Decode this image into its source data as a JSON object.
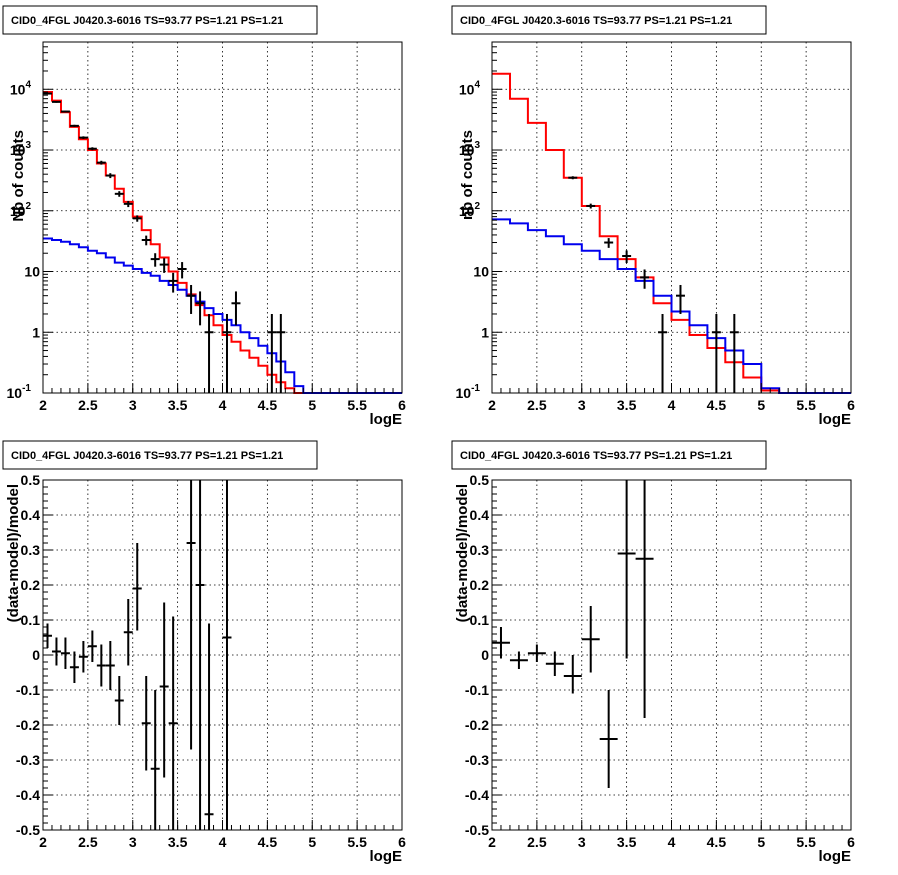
{
  "colors": {
    "data": "#000000",
    "total_model": "#ff0000",
    "background_model": "#0000ee"
  },
  "chart_data": [
    {
      "id": "counts-left",
      "type": "line",
      "title": "CID0_4FGL J0420.3-6016 TS=93.77 PS=1.21 PS=1.21",
      "xlabel": "logE",
      "ylabel": "Nb of counts",
      "xlim": [
        2,
        6
      ],
      "ylim": [
        0.1,
        60000
      ],
      "yscale": "log",
      "grid": true,
      "x_ticks": [
        "2",
        "2.5",
        "3",
        "3.5",
        "4",
        "4.5",
        "5",
        "5.5",
        "6"
      ],
      "y_ticks": [
        {
          "base": "10",
          "exp": "-1",
          "value": 0.1
        },
        {
          "base": "1",
          "exp": "",
          "value": 1
        },
        {
          "base": "10",
          "exp": "",
          "value": 10
        },
        {
          "base": "10",
          "exp": "2",
          "value": 100
        },
        {
          "base": "10",
          "exp": "3",
          "value": 1000
        },
        {
          "base": "10",
          "exp": "4",
          "value": 10000
        }
      ],
      "bin_edges": [
        2.0,
        2.1,
        2.2,
        2.3,
        2.4,
        2.5,
        2.6,
        2.7,
        2.8,
        2.9,
        3.0,
        3.1,
        3.2,
        3.3,
        3.4,
        3.5,
        3.6,
        3.7,
        3.8,
        3.9,
        4.0,
        4.1,
        4.2,
        4.3,
        4.4,
        4.5,
        4.6,
        4.7,
        4.8,
        4.9,
        5.0,
        5.1,
        5.2,
        5.3,
        5.4,
        5.5,
        5.6,
        5.7,
        5.8,
        5.9,
        6.0
      ],
      "series": [
        {
          "kind": "step",
          "color": "#ff0000",
          "values": [
            9000,
            6500,
            4200,
            2400,
            1500,
            1000,
            600,
            380,
            230,
            140,
            80,
            48,
            28,
            17,
            10,
            6.5,
            4.2,
            2.8,
            1.9,
            1.3,
            0.9,
            0.7,
            0.5,
            0.38,
            0.28,
            0.2,
            0.15,
            0.12,
            0.1,
            0.1,
            0.1,
            0.1,
            0.1,
            0.1,
            0.1,
            0.1,
            0.1,
            0.1,
            0.1,
            0.1
          ]
        },
        {
          "kind": "step",
          "color": "#0000ee",
          "values": [
            35,
            33,
            31,
            28,
            25,
            22,
            20,
            17,
            14,
            12.5,
            11,
            9.5,
            8.5,
            7,
            6,
            5,
            4,
            3.2,
            2.5,
            2,
            1.6,
            1.3,
            1,
            0.8,
            0.6,
            0.45,
            0.33,
            0.22,
            0.13,
            0.1,
            0.1,
            0.1,
            0.1,
            0.1,
            0.1,
            0.1,
            0.1,
            0.1,
            0.1,
            0.1
          ]
        },
        {
          "kind": "points",
          "color": "#000000",
          "points": [
            {
              "x": 2.05,
              "y": 8500,
              "lo": 8300,
              "hi": 8700
            },
            {
              "x": 2.15,
              "y": 6200,
              "lo": 6000,
              "hi": 6400
            },
            {
              "x": 2.25,
              "y": 4300,
              "lo": 4150,
              "hi": 4450
            },
            {
              "x": 2.35,
              "y": 2500,
              "lo": 2400,
              "hi": 2600
            },
            {
              "x": 2.45,
              "y": 1600,
              "lo": 1520,
              "hi": 1680
            },
            {
              "x": 2.55,
              "y": 1050,
              "lo": 990,
              "hi": 1110
            },
            {
              "x": 2.65,
              "y": 620,
              "lo": 575,
              "hi": 665
            },
            {
              "x": 2.75,
              "y": 380,
              "lo": 345,
              "hi": 415
            },
            {
              "x": 2.85,
              "y": 190,
              "lo": 170,
              "hi": 210
            },
            {
              "x": 2.95,
              "y": 130,
              "lo": 115,
              "hi": 145
            },
            {
              "x": 3.05,
              "y": 75,
              "lo": 66,
              "hi": 84
            },
            {
              "x": 3.15,
              "y": 33,
              "lo": 27,
              "hi": 39
            },
            {
              "x": 3.25,
              "y": 16,
              "lo": 12,
              "hi": 20
            },
            {
              "x": 3.35,
              "y": 13,
              "lo": 9.5,
              "hi": 16.5
            },
            {
              "x": 3.45,
              "y": 7,
              "lo": 4.5,
              "hi": 9.5
            },
            {
              "x": 3.55,
              "y": 11,
              "lo": 7.7,
              "hi": 14.3
            },
            {
              "x": 3.65,
              "y": 4,
              "lo": 2,
              "hi": 6
            },
            {
              "x": 3.75,
              "y": 3,
              "lo": 1.3,
              "hi": 4.7
            },
            {
              "x": 3.85,
              "y": 1,
              "lo": 0.05,
              "hi": 2
            },
            {
              "x": 4.05,
              "y": 1,
              "lo": 0.05,
              "hi": 2
            },
            {
              "x": 4.15,
              "y": 3,
              "lo": 1.3,
              "hi": 4.7
            },
            {
              "x": 4.55,
              "y": 1,
              "lo": 0.05,
              "hi": 2
            },
            {
              "x": 4.65,
              "y": 1,
              "lo": 0.05,
              "hi": 2
            }
          ]
        }
      ]
    },
    {
      "id": "counts-right",
      "type": "line",
      "title": "CID0_4FGL J0420.3-6016 TS=93.77 PS=1.21 PS=1.21",
      "xlabel": "logE",
      "ylabel": "nb of counts",
      "xlim": [
        2,
        6
      ],
      "ylim": [
        0.1,
        60000
      ],
      "yscale": "log",
      "grid": true,
      "x_ticks": [
        "2",
        "2.5",
        "3",
        "3.5",
        "4",
        "4.5",
        "5",
        "5.5",
        "6"
      ],
      "y_ticks": [
        {
          "base": "10",
          "exp": "-1",
          "value": 0.1
        },
        {
          "base": "1",
          "exp": "",
          "value": 1
        },
        {
          "base": "10",
          "exp": "",
          "value": 10
        },
        {
          "base": "10",
          "exp": "2",
          "value": 100
        },
        {
          "base": "10",
          "exp": "3",
          "value": 1000
        },
        {
          "base": "10",
          "exp": "4",
          "value": 10000
        }
      ],
      "bin_edges": [
        2.0,
        2.2,
        2.4,
        2.6,
        2.8,
        3.0,
        3.2,
        3.4,
        3.6,
        3.8,
        4.0,
        4.2,
        4.4,
        4.6,
        4.8,
        5.0,
        5.2,
        5.4,
        5.6,
        5.8,
        6.0
      ],
      "series": [
        {
          "kind": "step",
          "color": "#ff0000",
          "values": [
            18000,
            7000,
            2800,
            1000,
            350,
            120,
            38,
            16,
            8,
            3,
            1.6,
            0.9,
            0.55,
            0.32,
            0.18,
            0.11,
            0.1,
            0.1,
            0.1,
            0.1
          ]
        },
        {
          "kind": "step",
          "color": "#0000ee",
          "values": [
            72,
            62,
            48,
            38,
            28,
            22,
            16,
            11,
            7,
            4,
            2.2,
            1.3,
            0.8,
            0.5,
            0.3,
            0.12,
            0.1,
            0.1,
            0.1,
            0.1
          ]
        },
        {
          "kind": "points",
          "color": "#000000",
          "points": [
            {
              "x": 2.9,
              "y": 350,
              "lo": 330,
              "hi": 370
            },
            {
              "x": 3.1,
              "y": 120,
              "lo": 109,
              "hi": 131
            },
            {
              "x": 3.3,
              "y": 30,
              "lo": 24.5,
              "hi": 35.5
            },
            {
              "x": 3.5,
              "y": 18,
              "lo": 13.8,
              "hi": 22.2
            },
            {
              "x": 3.7,
              "y": 8,
              "lo": 5.2,
              "hi": 10.8
            },
            {
              "x": 3.9,
              "y": 1,
              "lo": 0.05,
              "hi": 2
            },
            {
              "x": 4.1,
              "y": 4,
              "lo": 2,
              "hi": 6
            },
            {
              "x": 4.5,
              "y": 1,
              "lo": 0.05,
              "hi": 2
            },
            {
              "x": 4.7,
              "y": 1,
              "lo": 0.05,
              "hi": 2
            }
          ]
        }
      ]
    },
    {
      "id": "residual-left",
      "type": "scatter",
      "title": "CID0_4FGL J0420.3-6016 TS=93.77 PS=1.21 PS=1.21",
      "xlabel": "logE",
      "ylabel": "(data-model)/model",
      "xlim": [
        2,
        6
      ],
      "ylim": [
        -0.5,
        0.5
      ],
      "yscale": "linear",
      "grid": true,
      "x_ticks": [
        "2",
        "2.5",
        "3",
        "3.5",
        "4",
        "4.5",
        "5",
        "5.5",
        "6"
      ],
      "y_ticks": [
        {
          "label": "-0.5",
          "value": -0.5
        },
        {
          "label": "-0.4",
          "value": -0.4
        },
        {
          "label": "-0.3",
          "value": -0.3
        },
        {
          "label": "-0.2",
          "value": -0.2
        },
        {
          "label": "-0.1",
          "value": -0.1
        },
        {
          "label": "0",
          "value": 0
        },
        {
          "label": "0.1",
          "value": 0.1
        },
        {
          "label": "0.2",
          "value": 0.2
        },
        {
          "label": "0.3",
          "value": 0.3
        },
        {
          "label": "0.4",
          "value": 0.4
        },
        {
          "label": "0.5",
          "value": 0.5
        }
      ],
      "xerr": 0.05,
      "series": [
        {
          "kind": "points",
          "color": "#000000",
          "points": [
            {
              "x": 2.05,
              "y": 0.055,
              "lo": 0.02,
              "hi": 0.09
            },
            {
              "x": 2.15,
              "y": 0.01,
              "lo": -0.03,
              "hi": 0.05
            },
            {
              "x": 2.25,
              "y": 0.005,
              "lo": -0.04,
              "hi": 0.05
            },
            {
              "x": 2.35,
              "y": -0.035,
              "lo": -0.08,
              "hi": 0.01
            },
            {
              "x": 2.45,
              "y": -0.005,
              "lo": -0.05,
              "hi": 0.04
            },
            {
              "x": 2.55,
              "y": 0.025,
              "lo": -0.02,
              "hi": 0.07
            },
            {
              "x": 2.65,
              "y": -0.03,
              "lo": -0.09,
              "hi": 0.03
            },
            {
              "x": 2.75,
              "y": -0.03,
              "lo": -0.1,
              "hi": 0.04
            },
            {
              "x": 2.85,
              "y": -0.13,
              "lo": -0.2,
              "hi": -0.06
            },
            {
              "x": 2.95,
              "y": 0.065,
              "lo": -0.03,
              "hi": 0.16
            },
            {
              "x": 3.05,
              "y": 0.19,
              "lo": 0.07,
              "hi": 0.32
            },
            {
              "x": 3.15,
              "y": -0.195,
              "lo": -0.33,
              "hi": -0.06
            },
            {
              "x": 3.25,
              "y": -0.325,
              "lo": -0.5,
              "hi": -0.1
            },
            {
              "x": 3.35,
              "y": -0.09,
              "lo": -0.35,
              "hi": 0.15
            },
            {
              "x": 3.45,
              "y": -0.195,
              "lo": -0.5,
              "hi": 0.11
            },
            {
              "x": 3.65,
              "y": 0.32,
              "lo": -0.27,
              "hi": 0.5
            },
            {
              "x": 3.75,
              "y": 0.2,
              "lo": -0.5,
              "hi": 0.5
            },
            {
              "x": 3.85,
              "y": -0.455,
              "lo": -0.5,
              "hi": 0.09
            },
            {
              "x": 4.05,
              "y": 0.05,
              "lo": -0.5,
              "hi": 0.5
            }
          ]
        }
      ]
    },
    {
      "id": "residual-right",
      "type": "scatter",
      "title": "CID0_4FGL J0420.3-6016 TS=93.77 PS=1.21 PS=1.21",
      "xlabel": "logE",
      "ylabel": "(data-model)/model",
      "xlim": [
        2,
        6
      ],
      "ylim": [
        -0.5,
        0.5
      ],
      "yscale": "linear",
      "grid": true,
      "x_ticks": [
        "2",
        "2.5",
        "3",
        "3.5",
        "4",
        "4.5",
        "5",
        "5.5",
        "6"
      ],
      "y_ticks": [
        {
          "label": "-0.5",
          "value": -0.5
        },
        {
          "label": "-0.4",
          "value": -0.4
        },
        {
          "label": "-0.3",
          "value": -0.3
        },
        {
          "label": "-0.2",
          "value": -0.2
        },
        {
          "label": "-0.1",
          "value": -0.1
        },
        {
          "label": "0",
          "value": 0
        },
        {
          "label": "0.1",
          "value": 0.1
        },
        {
          "label": "0.2",
          "value": 0.2
        },
        {
          "label": "0.3",
          "value": 0.3
        },
        {
          "label": "0.4",
          "value": 0.4
        },
        {
          "label": "0.5",
          "value": 0.5
        }
      ],
      "xerr": 0.1,
      "series": [
        {
          "kind": "points",
          "color": "#000000",
          "points": [
            {
              "x": 2.1,
              "y": 0.035,
              "lo": -0.01,
              "hi": 0.08
            },
            {
              "x": 2.3,
              "y": -0.015,
              "lo": -0.04,
              "hi": 0.01
            },
            {
              "x": 2.5,
              "y": 0.005,
              "lo": -0.02,
              "hi": 0.03
            },
            {
              "x": 2.7,
              "y": -0.025,
              "lo": -0.06,
              "hi": 0.01
            },
            {
              "x": 2.9,
              "y": -0.06,
              "lo": -0.11,
              "hi": 0.0
            },
            {
              "x": 3.1,
              "y": 0.045,
              "lo": -0.05,
              "hi": 0.14
            },
            {
              "x": 3.3,
              "y": -0.24,
              "lo": -0.38,
              "hi": -0.1
            },
            {
              "x": 3.5,
              "y": 0.29,
              "lo": -0.01,
              "hi": 0.5
            },
            {
              "x": 3.7,
              "y": 0.275,
              "lo": -0.18,
              "hi": 0.5
            }
          ]
        }
      ]
    }
  ]
}
